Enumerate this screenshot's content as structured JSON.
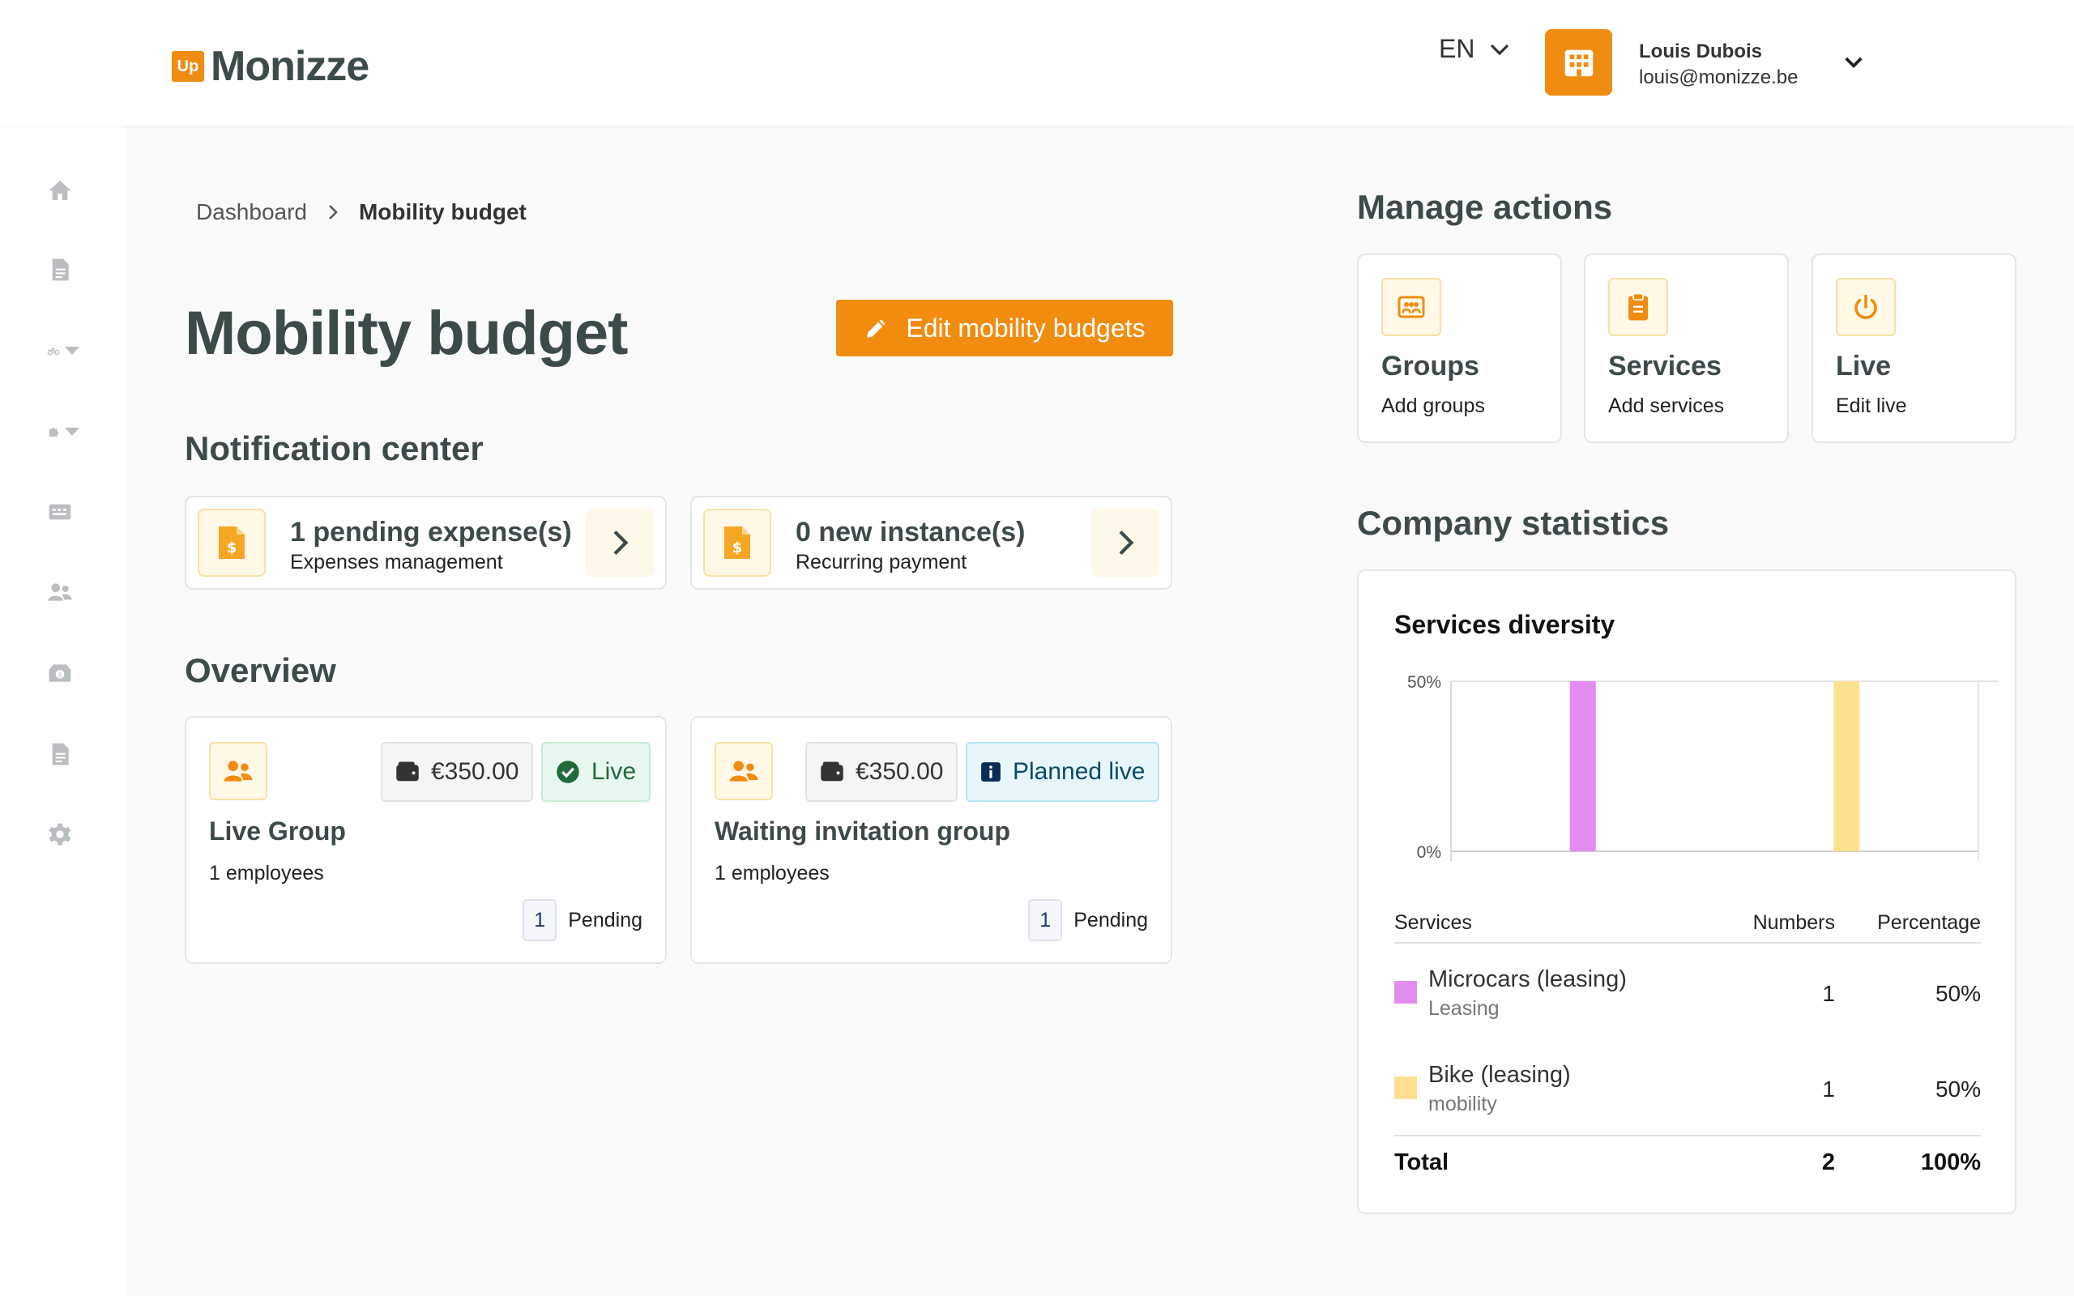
{
  "header": {
    "logo_badge": "Up",
    "logo_text": "Monizze",
    "language": "EN",
    "user_name": "Louis Dubois",
    "user_email": "louis@monizze.be"
  },
  "sidebar": {
    "icons": [
      "home-icon",
      "document-icon",
      "bike-icon",
      "puzzle-icon",
      "card-icon",
      "users-icon",
      "money-box-icon",
      "report-icon",
      "settings-icon"
    ]
  },
  "breadcrumb": {
    "root": "Dashboard",
    "current": "Mobility budget"
  },
  "page": {
    "title": "Mobility budget",
    "edit_button": "Edit mobility budgets"
  },
  "notification_center": {
    "title": "Notification center",
    "cards": [
      {
        "title": "1 pending expense(s)",
        "subtitle": "Expenses management"
      },
      {
        "title": "0 new instance(s)",
        "subtitle": "Recurring payment"
      }
    ]
  },
  "overview": {
    "title": "Overview",
    "groups": [
      {
        "amount": "€350.00",
        "status": "Live",
        "name": "Live Group",
        "employees": "1 employees",
        "pending_count": "1",
        "pending_label": "Pending"
      },
      {
        "amount": "€350.00",
        "status": "Planned live",
        "name": "Waiting invitation group",
        "employees": "1 employees",
        "pending_count": "1",
        "pending_label": "Pending"
      }
    ]
  },
  "manage_actions": {
    "title": "Manage actions",
    "cards": [
      {
        "title": "Groups",
        "subtitle": "Add groups",
        "icon": "groups-icon"
      },
      {
        "title": "Services",
        "subtitle": "Add services",
        "icon": "clipboard-icon"
      },
      {
        "title": "Live",
        "subtitle": "Edit live",
        "icon": "power-icon"
      }
    ]
  },
  "company_statistics": {
    "title": "Company statistics",
    "card_title": "Services diversity",
    "table": {
      "headers": [
        "Services",
        "Numbers",
        "Percentage"
      ],
      "rows": [
        {
          "name": "Microcars (leasing)",
          "category": "Leasing",
          "number": "1",
          "percentage": "50%",
          "color": "#e38cf0"
        },
        {
          "name": "Bike (leasing)",
          "category": "mobility",
          "number": "1",
          "percentage": "50%",
          "color": "#fde08f"
        }
      ],
      "total_label": "Total",
      "total_number": "2",
      "total_percentage": "100%"
    }
  },
  "chart_data": {
    "type": "bar",
    "title": "Services diversity",
    "categories": [
      "Microcars (leasing)",
      "Bike (leasing)"
    ],
    "values": [
      50,
      50
    ],
    "colors": [
      "#e38cf0",
      "#fde08f"
    ],
    "yticks": [
      "50%",
      "0%"
    ],
    "ylim": [
      0,
      50
    ],
    "grid": false,
    "legend": "none"
  }
}
